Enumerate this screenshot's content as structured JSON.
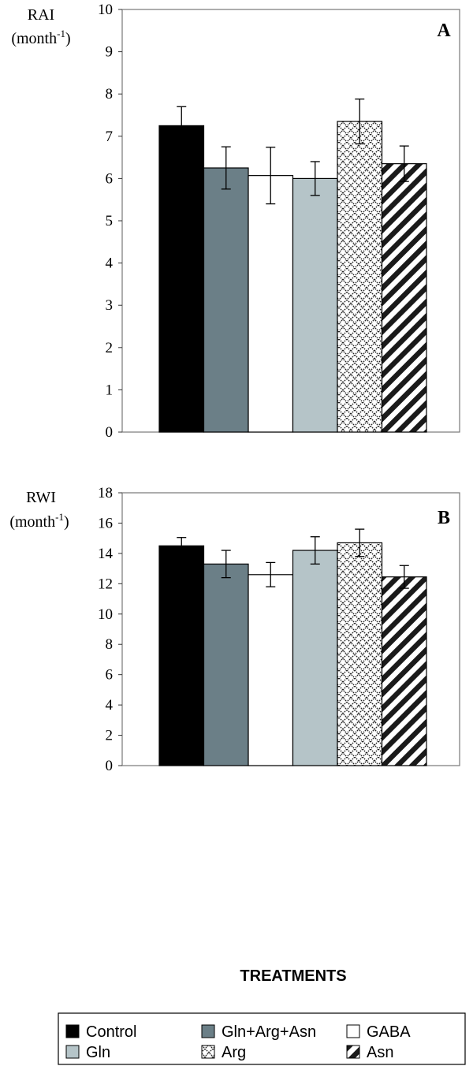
{
  "colors": {
    "control": "#000000",
    "combo": "#6b7f87",
    "gaba": "#ffffff",
    "gln": "#b5c4c8",
    "arg_pattern": "crosshatch-diamond",
    "asn_pattern": "diagonal-stripe"
  },
  "chart_data": [
    {
      "type": "bar",
      "panel_label": "A",
      "ylabel_line1": "RAI",
      "ylabel_line2": "(month",
      "ylabel_sup": "-1",
      "ylabel_close": ")",
      "ylim": [
        0,
        10
      ],
      "yticks": [
        "0",
        "1",
        "2",
        "3",
        "4",
        "5",
        "6",
        "7",
        "8",
        "9",
        "10"
      ],
      "grid": false,
      "series": [
        {
          "name": "Control",
          "value": 7.25,
          "error": 0.45
        },
        {
          "name": "Gln+Arg+Asn",
          "value": 6.25,
          "error": 0.5
        },
        {
          "name": "GABA",
          "value": 6.07,
          "error": 0.67
        },
        {
          "name": "Gln",
          "value": 6.0,
          "error": 0.4
        },
        {
          "name": "Arg",
          "value": 7.35,
          "error": 0.53
        },
        {
          "name": "Asn",
          "value": 6.35,
          "error": 0.42
        }
      ]
    },
    {
      "type": "bar",
      "panel_label": "B",
      "ylabel_line1": "RWI",
      "ylabel_line2": "(month",
      "ylabel_sup": "-1",
      "ylabel_close": ")",
      "ylim": [
        0,
        18
      ],
      "yticks": [
        "0",
        "2",
        "4",
        "6",
        "8",
        "10",
        "12",
        "14",
        "16",
        "18"
      ],
      "grid": false,
      "xlabel": "TREATMENTS",
      "series": [
        {
          "name": "Control",
          "value": 14.5,
          "error": 0.55
        },
        {
          "name": "Gln+Arg+Asn",
          "value": 13.3,
          "error": 0.9
        },
        {
          "name": "GABA",
          "value": 12.6,
          "error": 0.8
        },
        {
          "name": "Gln",
          "value": 14.2,
          "error": 0.9
        },
        {
          "name": "Arg",
          "value": 14.7,
          "error": 0.9
        },
        {
          "name": "Asn",
          "value": 12.45,
          "error": 0.75
        }
      ]
    }
  ],
  "legend": {
    "placement": "bottom",
    "items": [
      "Control",
      "Gln+Arg+Asn",
      "GABA",
      "Gln",
      "Arg",
      "Asn"
    ]
  }
}
